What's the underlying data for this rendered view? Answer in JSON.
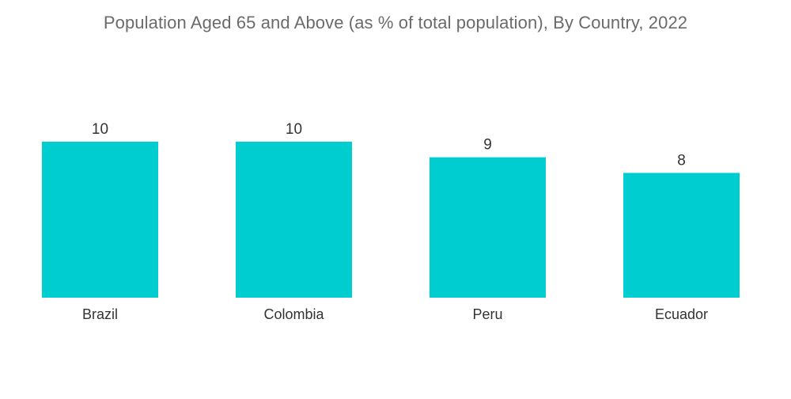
{
  "chart_data": {
    "type": "bar",
    "title": "Population Aged 65 and Above (as % of total population), By Country, 2022",
    "categories": [
      "Brazil",
      "Colombia",
      "Peru",
      "Ecuador"
    ],
    "values": [
      10,
      10,
      9,
      8
    ],
    "xlabel": "",
    "ylabel": "",
    "ylim": [
      0,
      10
    ],
    "grid": false,
    "legend": "none",
    "bar_color": "#00cdd0"
  }
}
